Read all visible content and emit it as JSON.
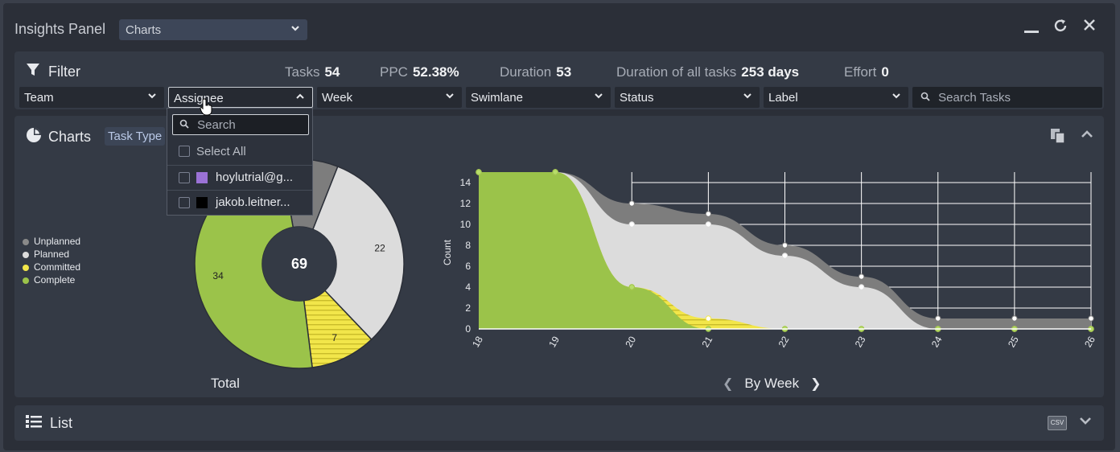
{
  "window": {
    "title": "Insights Panel",
    "view_select": "Charts"
  },
  "filter": {
    "title": "Filter",
    "stats": [
      {
        "label": "Tasks",
        "value": "54"
      },
      {
        "label": "PPC",
        "value": "52.38%"
      },
      {
        "label": "Duration",
        "value": "53"
      },
      {
        "label": "Duration of all tasks",
        "value": "253 days"
      },
      {
        "label": "Effort",
        "value": "0"
      }
    ],
    "dropdowns": [
      "Team",
      "Assignee",
      "Week",
      "Swimlane",
      "Status",
      "Label"
    ],
    "search_placeholder": "Search Tasks"
  },
  "assignee_menu": {
    "search_placeholder": "Search",
    "select_all": "Select All",
    "options": [
      {
        "label": "hoylutrial@g...",
        "color": "#9b72d6"
      },
      {
        "label": "jakob.leitner...",
        "color": "#000000"
      }
    ]
  },
  "charts": {
    "title": "Charts",
    "task_type_button": "Task Type",
    "total_label": "Total",
    "week_nav_label": "By Week",
    "legend": [
      {
        "label": "Unplanned",
        "color": "#8a8a8a"
      },
      {
        "label": "Planned",
        "color": "#dcdcdc"
      },
      {
        "label": "Committed",
        "color": "#f2e64a"
      },
      {
        "label": "Complete",
        "color": "#9bc34a"
      }
    ]
  },
  "chart_data": [
    {
      "type": "pie",
      "center_label": "69",
      "slices": [
        {
          "name": "Unplanned",
          "value": 6,
          "label": "6",
          "color": "#7d7d7d"
        },
        {
          "name": "Planned",
          "value": 22,
          "label": "22",
          "color": "#dcdcdc"
        },
        {
          "name": "Committed",
          "value": 7,
          "label": "7",
          "color": "#f2e64a"
        },
        {
          "name": "Complete",
          "value": 34,
          "label": "34",
          "color": "#9bc34a"
        }
      ]
    },
    {
      "type": "area",
      "xlabel": "",
      "ylabel": "Count",
      "ylim": [
        0,
        15
      ],
      "yticks": [
        0,
        2,
        4,
        6,
        8,
        10,
        12,
        14
      ],
      "x": [
        "18",
        "19",
        "20",
        "21",
        "22",
        "23",
        "24",
        "25",
        "26"
      ],
      "grid": true,
      "series": [
        {
          "name": "Unplanned",
          "color": "#7d7d7d",
          "values": [
            15,
            15,
            12,
            11,
            8,
            5,
            1,
            1,
            1
          ]
        },
        {
          "name": "Planned",
          "color": "#dcdcdc",
          "values": [
            15,
            15,
            10,
            10,
            7,
            4,
            0,
            0,
            0
          ]
        },
        {
          "name": "Committed",
          "color": "#f2e64a",
          "values": [
            15,
            15,
            4,
            1,
            0,
            0,
            0,
            0,
            0
          ]
        },
        {
          "name": "Complete",
          "color": "#9bc34a",
          "values": [
            15,
            15,
            4,
            0,
            0,
            0,
            0,
            0,
            0
          ]
        }
      ]
    }
  ],
  "list": {
    "title": "List",
    "csv_label": "CSV"
  }
}
